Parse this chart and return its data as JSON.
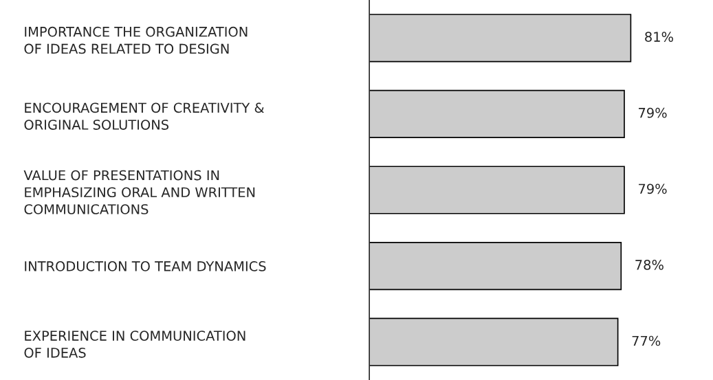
{
  "chart_data": {
    "type": "bar",
    "orientation": "horizontal",
    "categories": [
      "IMPORTANCE THE ORGANIZATION\nOF IDEAS RELATED TO DESIGN",
      "ENCOURAGEMENT OF CREATIVITY &\nORIGINAL SOLUTIONS",
      "VALUE OF PRESENTATIONS IN\nEMPHASIZING ORAL AND WRITTEN\nCOMMUNICATIONS",
      "INTRODUCTION TO TEAM DYNAMICS",
      "EXPERIENCE IN COMMUNICATION\nOF IDEAS"
    ],
    "values": [
      81,
      79,
      79,
      78,
      77
    ],
    "value_labels": [
      "81%",
      "79%",
      "79%",
      "78%",
      "77%"
    ],
    "color": "#cccccc",
    "grid": false,
    "legend": false
  }
}
